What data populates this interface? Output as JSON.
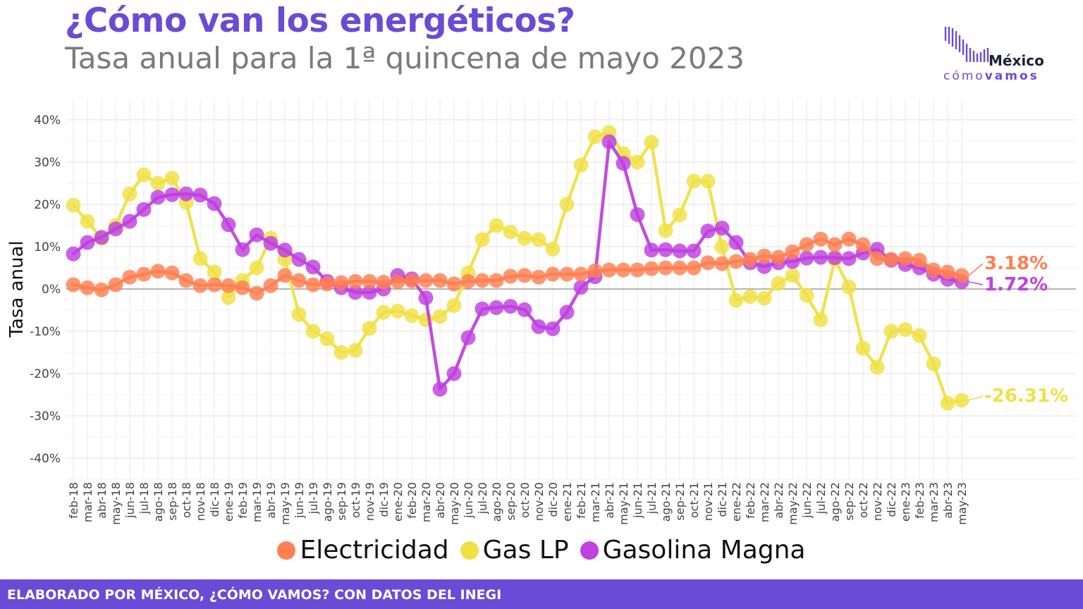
{
  "header": {
    "title": "¿Cómo van los energéticos?",
    "subtitle": "Tasa anual para la 1ª quincena de mayo 2023"
  },
  "logo": {
    "brand": "México",
    "tagline_light": "cómo",
    "tagline_bold": "vamos"
  },
  "footer": {
    "text": "ELABORADO POR MÉXICO, ¿CÓMO VAMOS? CON DATOS DEL INEGI"
  },
  "chart_data": {
    "type": "line",
    "ylabel": "Tasa anual",
    "ylim": [
      -45,
      43
    ],
    "yticks": [
      -40,
      -30,
      -20,
      -10,
      0,
      10,
      20,
      30,
      40
    ],
    "ytick_labels": [
      "-40%",
      "-30%",
      "-20%",
      "-10%",
      "0%",
      "10%",
      "20%",
      "30%",
      "40%"
    ],
    "grid": true,
    "legend_position": "bottom",
    "categories": [
      "feb-18",
      "mar-18",
      "abr-18",
      "may-18",
      "jun-18",
      "jul-18",
      "ago-18",
      "sep-18",
      "oct-18",
      "nov-18",
      "dic-18",
      "ene-19",
      "feb-19",
      "mar-19",
      "abr-19",
      "may-19",
      "jun-19",
      "jul-19",
      "ago-19",
      "sep-19",
      "oct-19",
      "nov-19",
      "dic-19",
      "ene-20",
      "feb-20",
      "mar-20",
      "abr-20",
      "may-20",
      "jun-20",
      "jul-20",
      "ago-20",
      "sep-20",
      "oct-20",
      "nov-20",
      "dic-20",
      "ene-21",
      "feb-21",
      "mar-21",
      "abr-21",
      "may-21",
      "jun-21",
      "jul-21",
      "ago-21",
      "sep-21",
      "oct-21",
      "nov-21",
      "dic-21",
      "ene-22",
      "feb-22",
      "mar-22",
      "abr-22",
      "may-22",
      "jun-22",
      "jul-22",
      "ago-22",
      "sep-22",
      "oct-22",
      "nov-22",
      "dic-22",
      "ene-23",
      "feb-23",
      "mar-23",
      "abr-23",
      "may-23"
    ],
    "series": [
      {
        "name": "Electricidad",
        "color": "#ff7f50",
        "end_label": "3.18%",
        "values": [
          1.0,
          0.3,
          -0.2,
          1.0,
          2.8,
          3.5,
          4.2,
          3.8,
          2.0,
          0.8,
          1.0,
          0.8,
          0.3,
          -1.0,
          0.8,
          3.2,
          2.0,
          1.0,
          1.2,
          1.5,
          1.8,
          1.8,
          1.6,
          1.7,
          1.9,
          2.0,
          2.0,
          1.2,
          1.8,
          2.0,
          2.0,
          3.0,
          3.2,
          2.8,
          3.5,
          3.5,
          3.5,
          4.3,
          4.5,
          4.5,
          4.5,
          4.8,
          5.0,
          5.0,
          5.0,
          6.2,
          6.0,
          6.5,
          7.0,
          7.8,
          7.5,
          8.8,
          10.5,
          11.8,
          10.5,
          11.8,
          10.5,
          7.2,
          7.0,
          7.2,
          6.8,
          4.5,
          4.0,
          3.18
        ]
      },
      {
        "name": "Gas LP",
        "color": "#f0e044",
        "end_label": "-26.31%",
        "values": [
          19.8,
          16.0,
          12.0,
          15.0,
          22.5,
          27.0,
          25.0,
          26.2,
          20.5,
          7.2,
          4.0,
          -2.0,
          2.0,
          5.0,
          12.0,
          7.0,
          -6.0,
          -10.0,
          -11.8,
          -15.0,
          -14.5,
          -9.3,
          -5.5,
          -5.2,
          -6.3,
          -7.3,
          -6.5,
          -3.9,
          3.8,
          11.7,
          15.0,
          13.5,
          12.0,
          11.7,
          9.4,
          20.0,
          29.3,
          36.0,
          37.0,
          32.0,
          30.0,
          34.7,
          13.8,
          17.5,
          25.5,
          25.5,
          10.0,
          -2.7,
          -1.8,
          -2.2,
          1.3,
          3.2,
          -1.5,
          -7.3,
          7.0,
          0.5,
          -14.0,
          -18.5,
          -10.0,
          -9.6,
          -11.0,
          -17.7,
          -27.0,
          -26.31
        ]
      },
      {
        "name": "Gasolina Magna",
        "color": "#c040e0",
        "end_label": "1.72%",
        "values": [
          8.3,
          11.0,
          12.2,
          14.2,
          16.0,
          18.8,
          21.7,
          22.3,
          22.5,
          22.2,
          20.2,
          15.2,
          9.3,
          12.8,
          10.8,
          9.2,
          7.0,
          5.2,
          1.8,
          0.3,
          -0.8,
          -0.8,
          0.0,
          3.2,
          2.4,
          -2.1,
          -23.7,
          -20.0,
          -11.5,
          -4.7,
          -4.4,
          -4.1,
          -4.9,
          -8.9,
          -9.4,
          -5.5,
          0.4,
          2.9,
          34.8,
          29.7,
          17.6,
          9.2,
          9.3,
          9.0,
          9.0,
          13.7,
          14.4,
          11.0,
          6.2,
          5.3,
          6.2,
          6.5,
          7.3,
          7.5,
          7.4,
          7.2,
          8.5,
          9.4,
          6.8,
          5.8,
          5.0,
          3.5,
          2.3,
          1.72
        ]
      }
    ]
  }
}
